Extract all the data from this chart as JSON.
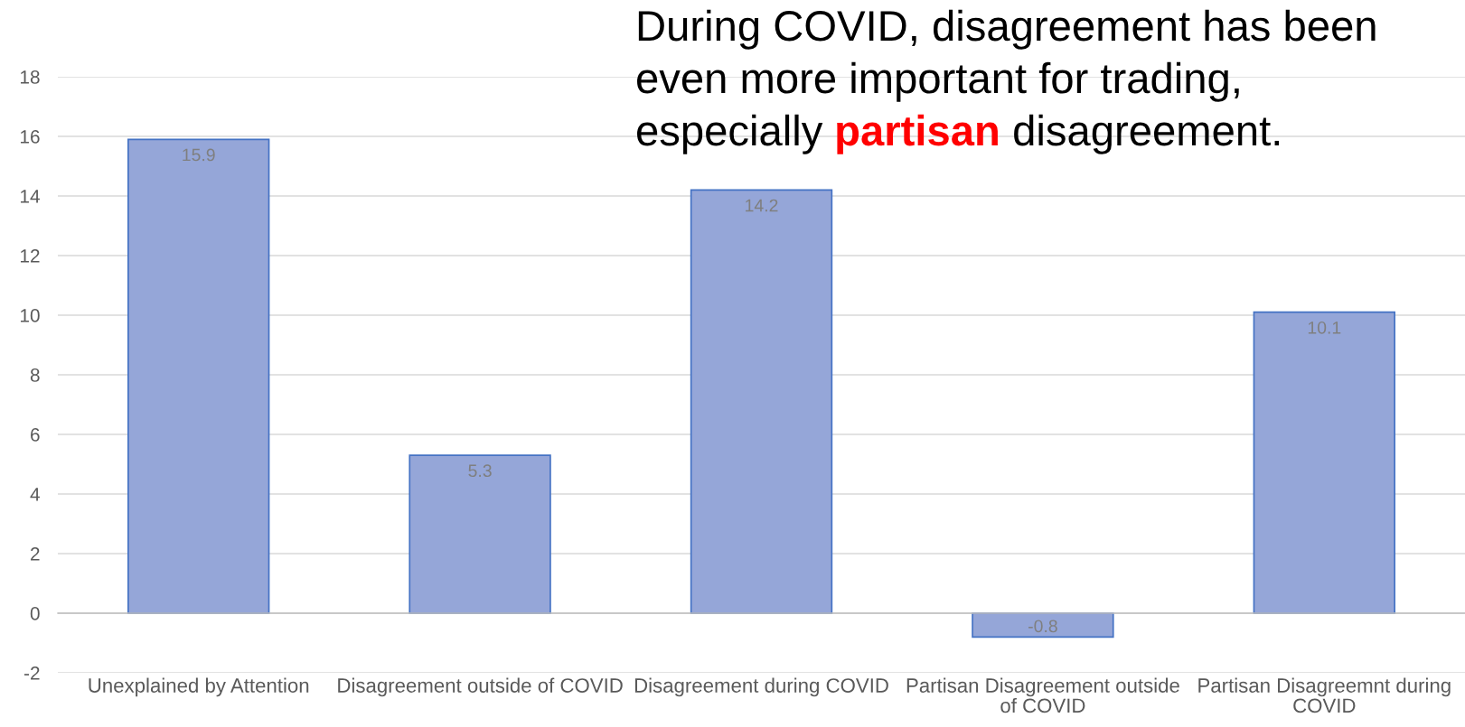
{
  "chart_data": {
    "type": "bar",
    "title": "During COVID, disagreement has been\neven more important for trading,\nespecially partisan disagreement.",
    "categories": [
      "Unexplained by Attention",
      "Disagreement outside of COVID",
      "Disagreement during COVID",
      "Partisan Disagreement outside\nof COVID",
      "Partisan Disagreemnt during\nCOVID"
    ],
    "values": [
      15.9,
      5.3,
      14.2,
      -0.8,
      10.1
    ],
    "color": "#95a6d8",
    "ylim": [
      -2,
      18
    ],
    "yticks": [
      -2,
      0,
      2,
      4,
      6,
      8,
      10,
      12,
      14,
      16,
      18
    ],
    "grid": "y",
    "data_labels": true
  }
}
